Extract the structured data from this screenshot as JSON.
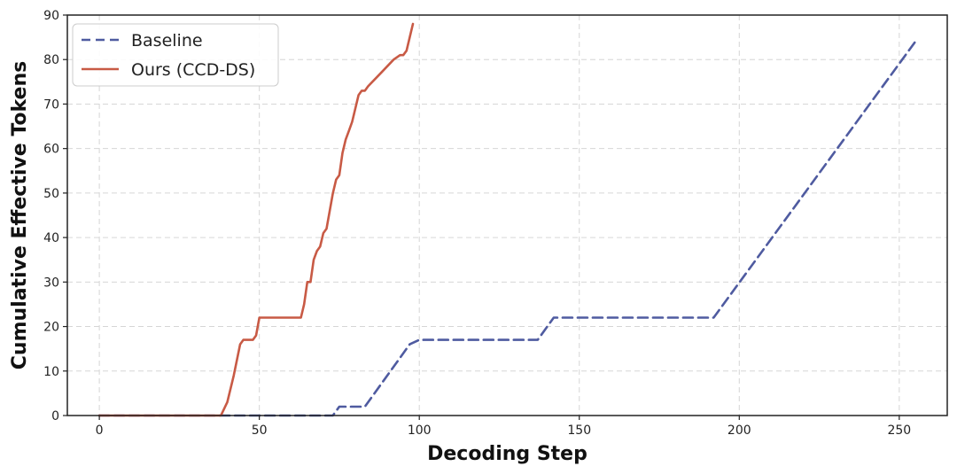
{
  "chart_data": {
    "type": "line",
    "title": "",
    "xlabel": "Decoding Step",
    "ylabel": "Cumulative Effective Tokens",
    "xlim": [
      -10,
      265
    ],
    "ylim": [
      0,
      90
    ],
    "xticks": [
      0,
      50,
      100,
      150,
      200,
      250
    ],
    "yticks": [
      0,
      10,
      20,
      30,
      40,
      50,
      60,
      70,
      80,
      90
    ],
    "grid": true,
    "legend_position": "top-left",
    "series": [
      {
        "name": "Baseline",
        "color": "#4f5ba0",
        "line_style": "dashed",
        "x": [
          0,
          73,
          75,
          83,
          97,
          100,
          137,
          142,
          192,
          255
        ],
        "y": [
          0,
          0,
          2,
          2,
          16,
          17,
          17,
          22,
          22,
          84
        ]
      },
      {
        "name": "Ours (CCD-DS)",
        "color": "#c85a45",
        "line_style": "solid",
        "x": [
          0,
          38,
          40,
          42,
          44,
          45,
          46,
          48,
          49,
          50,
          55,
          63,
          64,
          65,
          66,
          67,
          68,
          69,
          70,
          71,
          72,
          73,
          74,
          75,
          76,
          77,
          78,
          79,
          80,
          81,
          82,
          83,
          84,
          88,
          92,
          94,
          95,
          96,
          97,
          98
        ],
        "y": [
          0,
          0,
          3,
          9,
          16,
          17,
          17,
          17,
          18,
          22,
          22,
          22,
          25,
          30,
          30,
          35,
          37,
          38,
          41,
          42,
          46,
          50,
          53,
          54,
          59,
          62,
          64,
          66,
          69,
          72,
          73,
          73,
          74,
          77,
          80,
          81,
          81,
          82,
          85,
          88
        ]
      }
    ]
  }
}
